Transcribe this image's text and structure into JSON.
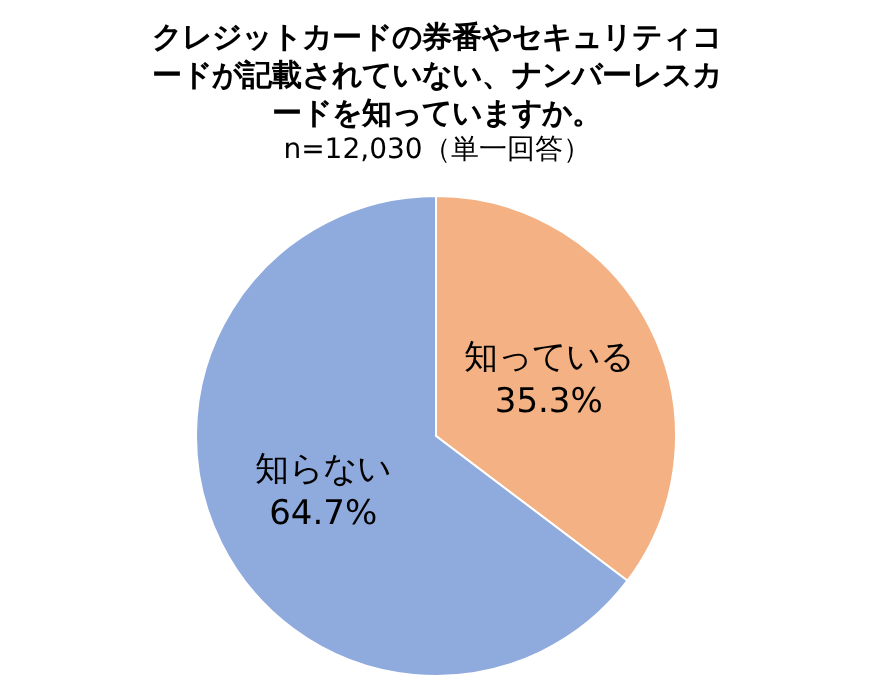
{
  "chart_data": {
    "type": "pie",
    "title": "クレジットカードの券番やセキュリティコードが記載されていない、ナンバーレスカードを知っていますか。",
    "subtitle": "n=12,030（単一回答）",
    "categories": [
      "知っている",
      "知らない"
    ],
    "values": [
      35.3,
      64.7
    ],
    "value_labels": [
      "35.3%",
      "64.7%"
    ],
    "colors": [
      "#f4b183",
      "#8faadc"
    ],
    "legend": false
  }
}
